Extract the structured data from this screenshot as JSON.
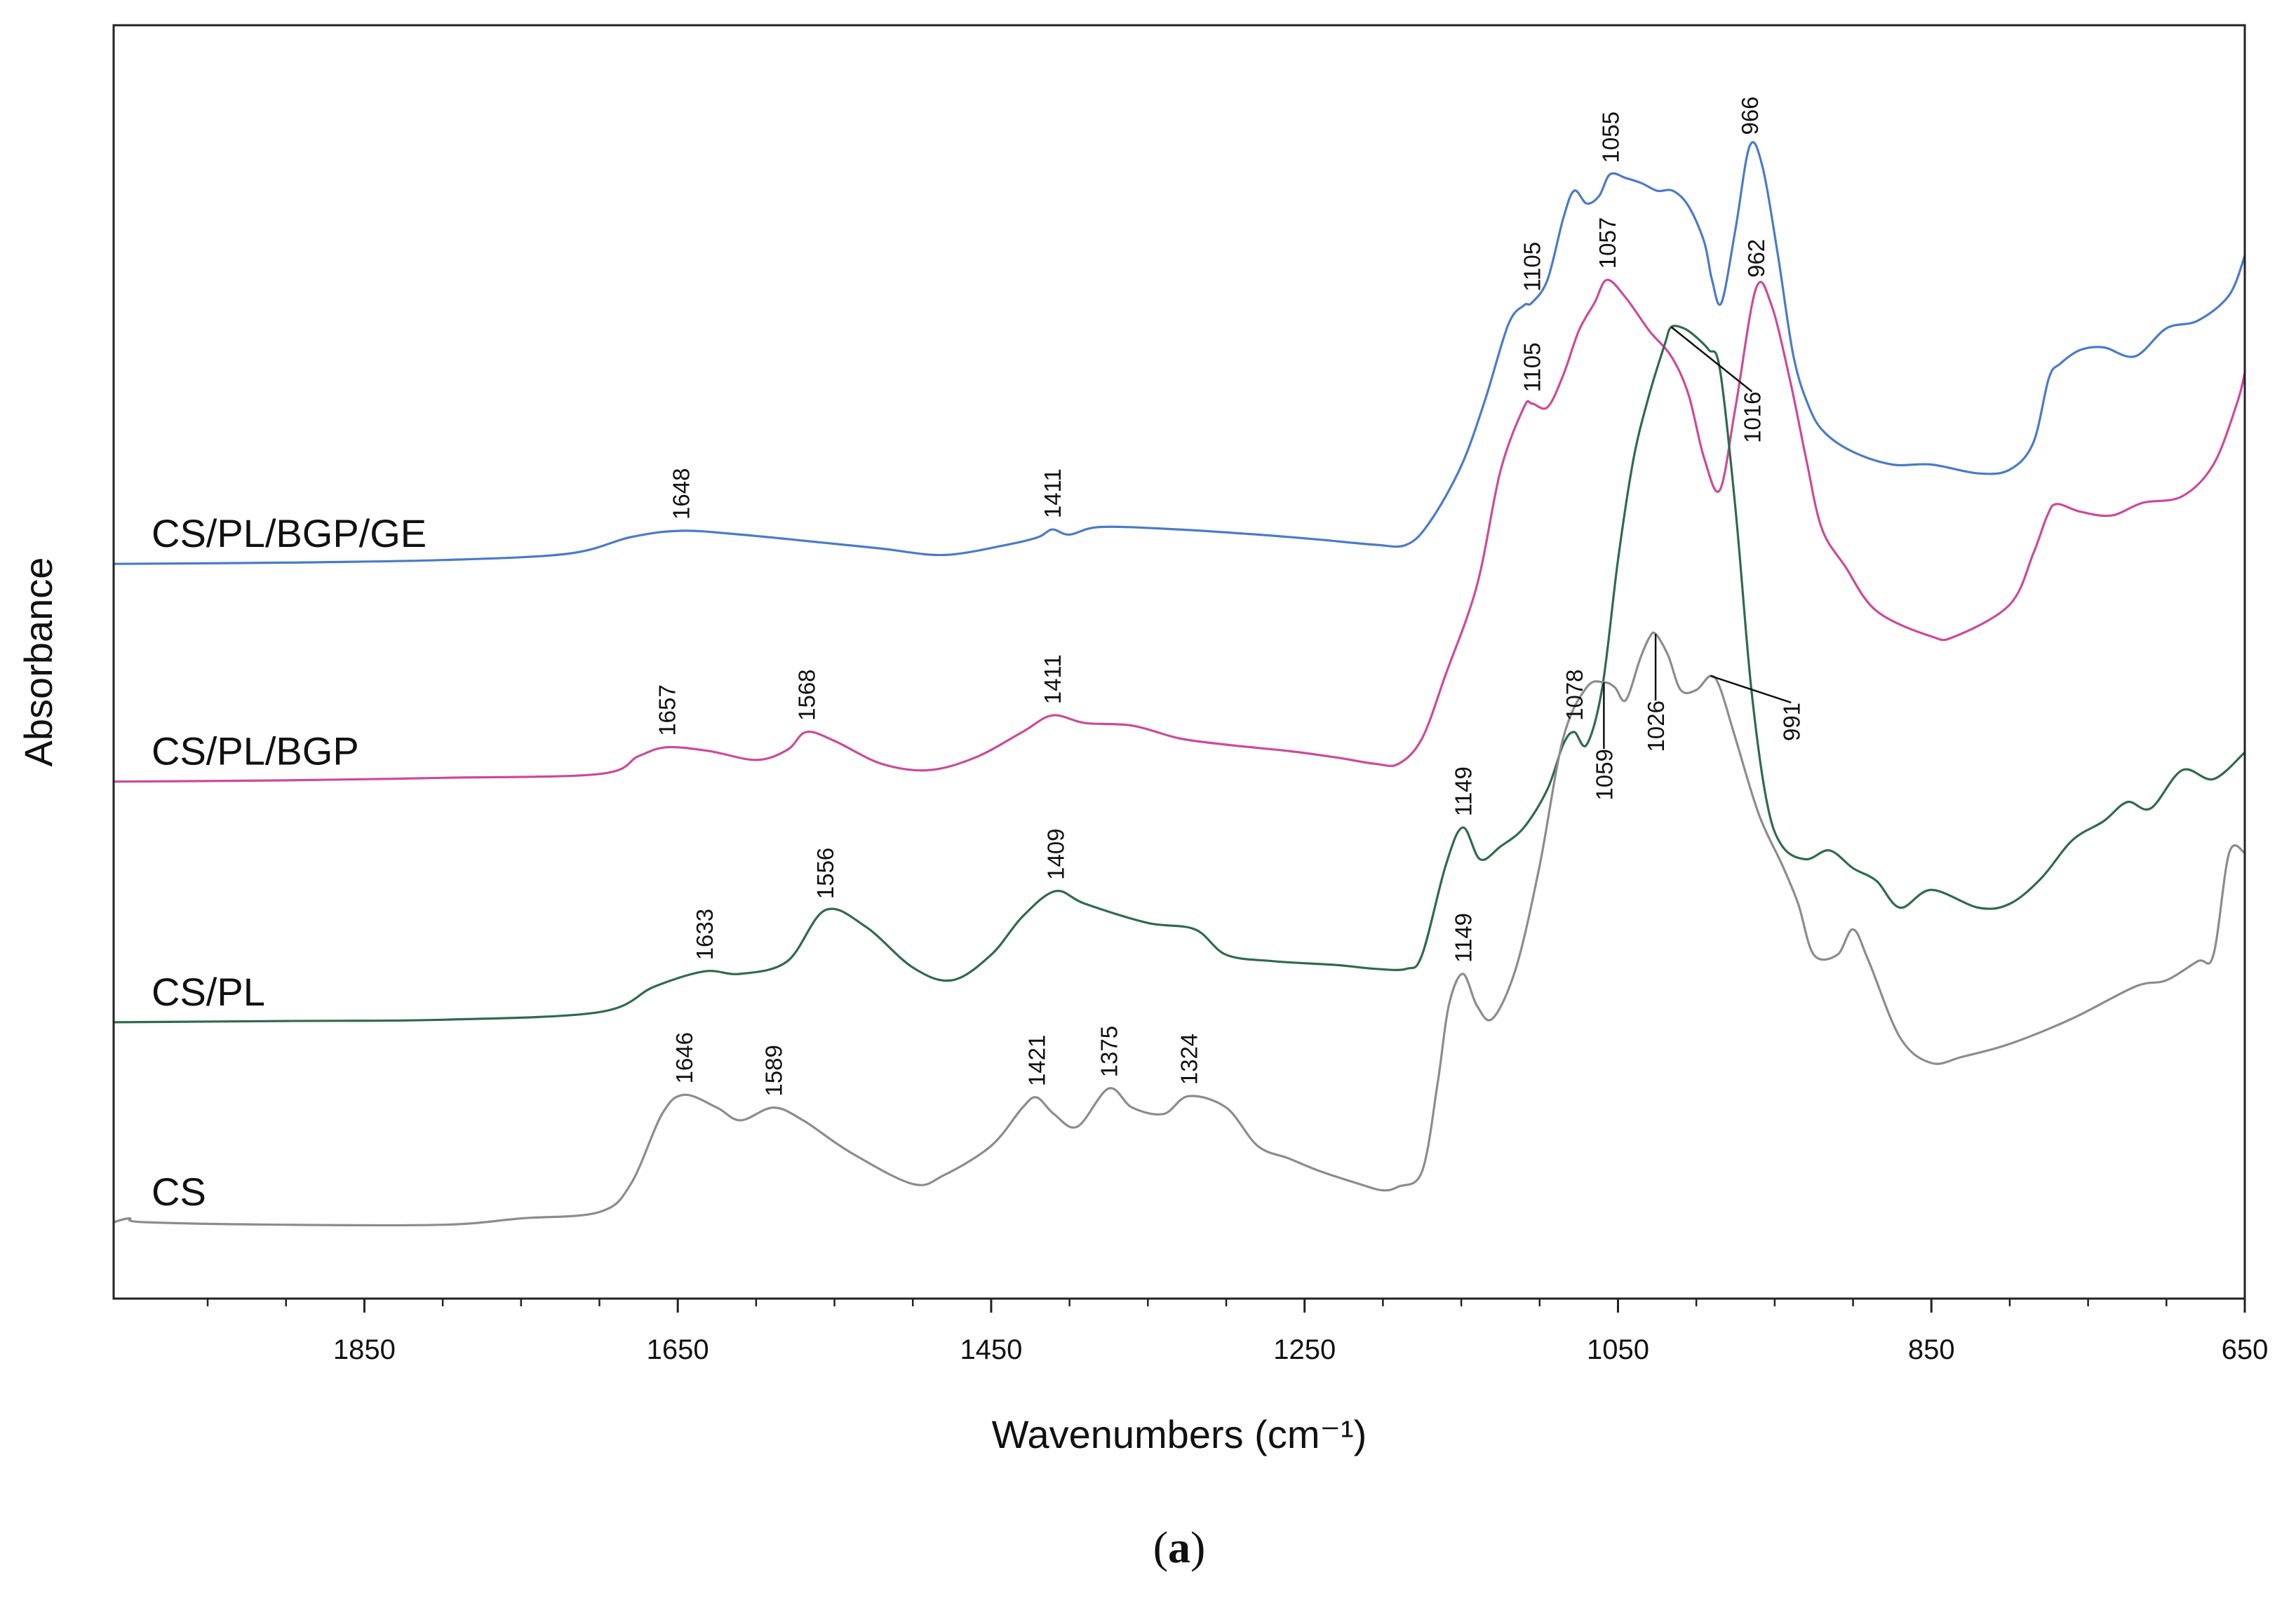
{
  "chart_data": {
    "type": "line",
    "xlabel": "Wavenumbers (cm⁻¹)",
    "ylabel": "Absorbance",
    "x_reversed": true,
    "xlim": [
      2010,
      650
    ],
    "ylim": [
      0,
      1
    ],
    "x_ticks": [
      1850,
      1650,
      1450,
      1250,
      1050,
      850,
      650
    ],
    "panel_label": "(a)",
    "panel_open": "(",
    "panel_letter": "a",
    "panel_close": ")",
    "series": [
      {
        "name": "CS/PL/BGP/GE",
        "color": "#4a7bc8",
        "x": [
          2010,
          1900,
          1800,
          1720,
          1680,
          1648,
          1610,
          1560,
          1520,
          1480,
          1440,
          1420,
          1411,
          1400,
          1380,
          1330,
          1280,
          1240,
          1205,
          1185,
          1170,
          1150,
          1135,
          1120,
          1110,
          1105,
          1095,
          1085,
          1078,
          1070,
          1062,
          1055,
          1045,
          1035,
          1025,
          1015,
          1005,
          995,
          990,
          984,
          975,
          966,
          958,
          948,
          938,
          928,
          918,
          900,
          875,
          850,
          820,
          800,
          785,
          775,
          768,
          755,
          740,
          720,
          700,
          680,
          660,
          650
        ],
        "y": [
          0.577,
          0.578,
          0.58,
          0.585,
          0.598,
          0.603,
          0.6,
          0.594,
          0.589,
          0.584,
          0.592,
          0.598,
          0.604,
          0.6,
          0.606,
          0.604,
          0.6,
          0.596,
          0.592,
          0.592,
          0.61,
          0.654,
          0.705,
          0.765,
          0.78,
          0.782,
          0.8,
          0.848,
          0.87,
          0.86,
          0.866,
          0.883,
          0.88,
          0.876,
          0.87,
          0.87,
          0.858,
          0.83,
          0.8,
          0.782,
          0.84,
          0.905,
          0.89,
          0.82,
          0.74,
          0.7,
          0.68,
          0.665,
          0.655,
          0.655,
          0.648,
          0.651,
          0.672,
          0.723,
          0.734,
          0.745,
          0.747,
          0.74,
          0.762,
          0.768,
          0.788,
          0.819
        ]
      },
      {
        "name": "CS/PL/BGP",
        "color": "#cc4a9a",
        "x": [
          2010,
          1900,
          1800,
          1700,
          1675,
          1657,
          1630,
          1600,
          1580,
          1568,
          1550,
          1520,
          1490,
          1460,
          1430,
          1411,
          1390,
          1360,
          1330,
          1300,
          1260,
          1230,
          1205,
          1190,
          1175,
          1160,
          1140,
          1125,
          1110,
          1105,
          1095,
          1085,
          1075,
          1065,
          1057,
          1045,
          1030,
          1016,
          1005,
          995,
          985,
          975,
          962,
          952,
          940,
          930,
          920,
          905,
          885,
          850,
          835,
          800,
          785,
          776,
          770,
          755,
          735,
          715,
          690,
          670,
          655,
          650
        ],
        "y": [
          0.406,
          0.407,
          0.409,
          0.412,
          0.426,
          0.433,
          0.43,
          0.423,
          0.431,
          0.445,
          0.438,
          0.42,
          0.415,
          0.425,
          0.445,
          0.458,
          0.452,
          0.45,
          0.44,
          0.435,
          0.43,
          0.425,
          0.42,
          0.42,
          0.44,
          0.49,
          0.56,
          0.65,
          0.7,
          0.703,
          0.7,
          0.725,
          0.76,
          0.782,
          0.8,
          0.786,
          0.76,
          0.74,
          0.71,
          0.66,
          0.635,
          0.7,
          0.793,
          0.78,
          0.72,
          0.66,
          0.605,
          0.575,
          0.54,
          0.52,
          0.52,
          0.545,
          0.585,
          0.615,
          0.624,
          0.618,
          0.615,
          0.625,
          0.63,
          0.655,
          0.703,
          0.727
        ]
      },
      {
        "name": "CS/PL",
        "color": "#2e6b4e",
        "x": [
          2010,
          1900,
          1800,
          1700,
          1665,
          1633,
          1610,
          1580,
          1556,
          1530,
          1500,
          1475,
          1450,
          1430,
          1409,
          1390,
          1350,
          1320,
          1300,
          1270,
          1230,
          1205,
          1185,
          1175,
          1160,
          1149,
          1138,
          1125,
          1110,
          1095,
          1085,
          1078,
          1070,
          1060,
          1050,
          1040,
          1030,
          1020,
          1016,
          1008,
          1000,
          992,
          985,
          975,
          965,
          955,
          945,
          930,
          915,
          900,
          885,
          870,
          850,
          820,
          800,
          780,
          760,
          740,
          725,
          710,
          690,
          670,
          650
        ],
        "y": [
          0.217,
          0.218,
          0.219,
          0.225,
          0.245,
          0.257,
          0.255,
          0.265,
          0.305,
          0.292,
          0.26,
          0.25,
          0.27,
          0.3,
          0.32,
          0.31,
          0.295,
          0.29,
          0.27,
          0.265,
          0.262,
          0.259,
          0.259,
          0.27,
          0.34,
          0.37,
          0.345,
          0.355,
          0.37,
          0.4,
          0.435,
          0.445,
          0.435,
          0.48,
          0.58,
          0.66,
          0.71,
          0.75,
          0.763,
          0.762,
          0.755,
          0.745,
          0.73,
          0.62,
          0.48,
          0.39,
          0.355,
          0.345,
          0.352,
          0.338,
          0.328,
          0.307,
          0.321,
          0.307,
          0.31,
          0.33,
          0.36,
          0.375,
          0.39,
          0.385,
          0.415,
          0.408,
          0.429
        ]
      },
      {
        "name": "CS",
        "color": "#8c8c8c",
        "x": [
          2010,
          2000,
          1990,
          1900,
          1800,
          1750,
          1700,
          1680,
          1660,
          1646,
          1625,
          1610,
          1589,
          1570,
          1540,
          1500,
          1480,
          1450,
          1430,
          1421,
          1410,
          1395,
          1375,
          1360,
          1340,
          1324,
          1300,
          1280,
          1260,
          1240,
          1215,
          1200,
          1190,
          1175,
          1165,
          1158,
          1149,
          1140,
          1130,
          1115,
          1100,
          1085,
          1070,
          1059,
          1052,
          1045,
          1036,
          1030,
          1026,
          1018,
          1010,
          1000,
          991,
          985,
          975,
          960,
          945,
          935,
          925,
          910,
          900,
          890,
          870,
          850,
          830,
          800,
          760,
          720,
          700,
          680,
          670,
          660,
          650
        ],
        "y": [
          0.06,
          0.063,
          0.06,
          0.058,
          0.058,
          0.063,
          0.068,
          0.09,
          0.145,
          0.16,
          0.15,
          0.14,
          0.15,
          0.14,
          0.115,
          0.09,
          0.097,
          0.12,
          0.15,
          0.158,
          0.145,
          0.135,
          0.165,
          0.15,
          0.145,
          0.159,
          0.15,
          0.12,
          0.11,
          0.1,
          0.09,
          0.085,
          0.088,
          0.1,
          0.17,
          0.23,
          0.255,
          0.23,
          0.22,
          0.26,
          0.34,
          0.44,
          0.48,
          0.484,
          0.48,
          0.47,
          0.502,
          0.519,
          0.522,
          0.505,
          0.478,
          0.478,
          0.489,
          0.48,
          0.44,
          0.38,
          0.34,
          0.31,
          0.27,
          0.27,
          0.29,
          0.265,
          0.205,
          0.185,
          0.19,
          0.2,
          0.22,
          0.245,
          0.25,
          0.265,
          0.27,
          0.35,
          0.35
        ]
      }
    ],
    "annotations": [
      {
        "series": "CS/PL/BGP/GE",
        "text": "1648",
        "x": 1648,
        "y": 0.603,
        "style": "vertical"
      },
      {
        "series": "CS/PL/BGP/GE",
        "text": "1411",
        "x": 1411,
        "y": 0.604,
        "style": "vertical"
      },
      {
        "series": "CS/PL/BGP/GE",
        "text": "1105",
        "x": 1105,
        "y": 0.782,
        "style": "vertical"
      },
      {
        "series": "CS/PL/BGP/GE",
        "text": "1055",
        "x": 1055,
        "y": 0.883,
        "style": "vertical"
      },
      {
        "series": "CS/PL/BGP/GE",
        "text": "966",
        "x": 966,
        "y": 0.905,
        "style": "vertical"
      },
      {
        "series": "CS/PL/BGP",
        "text": "1657",
        "x": 1657,
        "y": 0.433,
        "style": "vertical"
      },
      {
        "series": "CS/PL/BGP",
        "text": "1568",
        "x": 1568,
        "y": 0.445,
        "style": "vertical"
      },
      {
        "series": "CS/PL/BGP",
        "text": "1411",
        "x": 1411,
        "y": 0.458,
        "style": "vertical"
      },
      {
        "series": "CS/PL/BGP",
        "text": "1105",
        "x": 1105,
        "y": 0.703,
        "style": "vertical"
      },
      {
        "series": "CS/PL/BGP",
        "text": "1057",
        "x": 1057,
        "y": 0.8,
        "style": "vertical"
      },
      {
        "series": "CS/PL/BGP",
        "text": "962",
        "x": 962,
        "y": 0.793,
        "style": "vertical"
      },
      {
        "series": "CS/PL",
        "text": "1633",
        "x": 1633,
        "y": 0.257,
        "style": "vertical"
      },
      {
        "series": "CS/PL",
        "text": "1556",
        "x": 1556,
        "y": 0.305,
        "style": "vertical"
      },
      {
        "series": "CS/PL",
        "text": "1409",
        "x": 1409,
        "y": 0.32,
        "style": "vertical"
      },
      {
        "series": "CS/PL",
        "text": "1149",
        "x": 1149,
        "y": 0.37,
        "style": "vertical"
      },
      {
        "series": "CS/PL",
        "text": "1078",
        "x": 1078,
        "y": 0.445,
        "style": "vertical"
      },
      {
        "series": "CS/PL",
        "text": "1016",
        "x": 1016,
        "y": 0.763,
        "style": "leader"
      },
      {
        "series": "CS",
        "text": "1646",
        "x": 1646,
        "y": 0.16,
        "style": "vertical"
      },
      {
        "series": "CS",
        "text": "1589",
        "x": 1589,
        "y": 0.15,
        "style": "vertical"
      },
      {
        "series": "CS",
        "text": "1421",
        "x": 1421,
        "y": 0.158,
        "style": "vertical"
      },
      {
        "series": "CS",
        "text": "1375",
        "x": 1375,
        "y": 0.165,
        "style": "vertical"
      },
      {
        "series": "CS",
        "text": "1324",
        "x": 1324,
        "y": 0.159,
        "style": "vertical"
      },
      {
        "series": "CS",
        "text": "1149",
        "x": 1149,
        "y": 0.255,
        "style": "vertical"
      },
      {
        "series": "CS",
        "text": "1059",
        "x": 1059,
        "y": 0.484,
        "style": "leader"
      },
      {
        "series": "CS",
        "text": "1026",
        "x": 1026,
        "y": 0.522,
        "style": "leader"
      },
      {
        "series": "CS",
        "text": "991",
        "x": 991,
        "y": 0.489,
        "style": "leader"
      }
    ]
  }
}
